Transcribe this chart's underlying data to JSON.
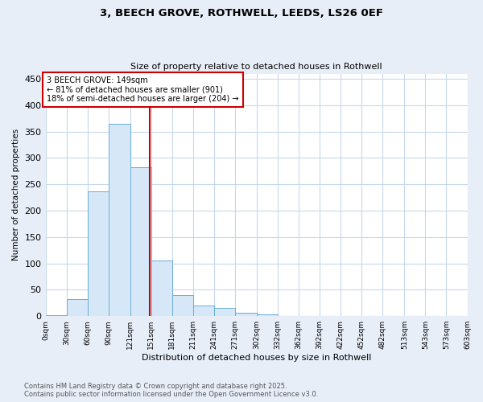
{
  "title1": "3, BEECH GROVE, ROTHWELL, LEEDS, LS26 0EF",
  "title2": "Size of property relative to detached houses in Rothwell",
  "xlabel": "Distribution of detached houses by size in Rothwell",
  "ylabel": "Number of detached properties",
  "bin_labels": [
    "0sqm",
    "30sqm",
    "60sqm",
    "90sqm",
    "121sqm",
    "151sqm",
    "181sqm",
    "211sqm",
    "241sqm",
    "271sqm",
    "302sqm",
    "332sqm",
    "362sqm",
    "392sqm",
    "422sqm",
    "452sqm",
    "482sqm",
    "513sqm",
    "543sqm",
    "573sqm",
    "603sqm"
  ],
  "bin_edges": [
    0,
    30,
    60,
    90,
    121,
    151,
    181,
    211,
    241,
    271,
    302,
    332,
    362,
    392,
    422,
    452,
    482,
    513,
    543,
    573,
    603
  ],
  "counts": [
    2,
    32,
    237,
    365,
    283,
    105,
    40,
    20,
    15,
    6,
    3,
    1,
    1,
    1,
    0,
    0,
    1,
    0,
    0,
    0
  ],
  "property_size": 149,
  "annotation_title": "3 BEECH GROVE: 149sqm",
  "annotation_line1": "← 81% of detached houses are smaller (901)",
  "annotation_line2": "18% of semi-detached houses are larger (204) →",
  "bar_facecolor": "#d6e8f7",
  "bar_edgecolor": "#6aaed6",
  "redline_color": "#cc0000",
  "annotation_box_edgecolor": "#cc0000",
  "grid_color": "#c8d8ec",
  "plot_bg_color": "#ffffff",
  "fig_bg_color": "#e8eef8",
  "ylim": [
    0,
    460
  ],
  "yticks": [
    0,
    50,
    100,
    150,
    200,
    250,
    300,
    350,
    400,
    450
  ],
  "footer1": "Contains HM Land Registry data © Crown copyright and database right 2025.",
  "footer2": "Contains public sector information licensed under the Open Government Licence v3.0."
}
